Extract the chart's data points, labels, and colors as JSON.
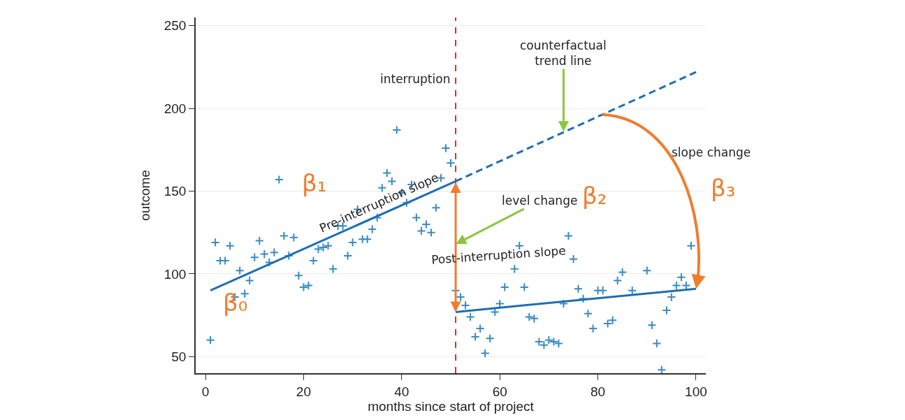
{
  "chart_data": {
    "type": "scatter",
    "xlabel": "months since start of project",
    "ylabel": "outcome",
    "xlim": [
      -2,
      102
    ],
    "ylim": [
      40,
      255
    ],
    "xticks": [
      0,
      20,
      40,
      60,
      80,
      100
    ],
    "yticks": [
      50,
      100,
      150,
      200,
      250
    ],
    "grid": "y",
    "series": [
      {
        "marker": "cross",
        "color": "#3a8ac4",
        "x": [
          1,
          2,
          3,
          4,
          5,
          6,
          7,
          8,
          9,
          10,
          11,
          12,
          13,
          14,
          15,
          16,
          17,
          18,
          19,
          20,
          21,
          22,
          23,
          24,
          25,
          26,
          27,
          28,
          29,
          30,
          31,
          32,
          33,
          34,
          35,
          36,
          37,
          38,
          39,
          40,
          41,
          42,
          43,
          44,
          45,
          46,
          47,
          48,
          49,
          50,
          51,
          52,
          53,
          54,
          55,
          56,
          57,
          58,
          59,
          60,
          61,
          63,
          64,
          65,
          66,
          67,
          68,
          69,
          70,
          71,
          72,
          73,
          74,
          75,
          76,
          77,
          78,
          79,
          80,
          81,
          82,
          83,
          84,
          85,
          87,
          90,
          91,
          92,
          93,
          94,
          95,
          96,
          97,
          98,
          99
        ],
        "values": [
          60,
          119,
          108,
          108,
          117,
          86,
          102,
          88,
          96,
          110,
          120,
          112,
          107,
          113,
          157,
          123,
          111,
          122,
          99,
          92,
          93,
          108,
          115,
          116,
          117,
          103,
          129,
          129,
          111,
          119,
          139,
          121,
          121,
          127,
          134,
          152,
          161,
          156,
          187,
          149,
          143,
          154,
          134,
          126,
          130,
          125,
          140,
          158,
          176,
          167,
          90,
          86,
          81,
          74,
          62,
          67,
          52,
          61,
          77,
          82,
          92,
          103,
          117,
          92,
          74,
          73,
          59,
          57,
          60,
          59,
          58,
          82,
          123,
          109,
          91,
          85,
          76,
          67,
          90,
          90,
          70,
          72,
          96,
          101,
          90,
          102,
          69,
          58,
          42,
          78,
          86,
          93,
          98,
          93,
          117
        ]
      },
      {
        "type": "line",
        "line_style": "solid",
        "color": "#1f6eb0",
        "x": [
          1,
          51
        ],
        "values": [
          90,
          156
        ]
      },
      {
        "type": "line",
        "line_style": "dashed",
        "color": "#1f6eb0",
        "x": [
          51,
          100
        ],
        "values": [
          156,
          222
        ]
      },
      {
        "type": "line",
        "line_style": "solid",
        "color": "#1f6eb0",
        "x": [
          51,
          100
        ],
        "values": [
          77,
          91
        ]
      }
    ],
    "ref_lines": [
      {
        "axis": "x",
        "value": 51,
        "label": "interruption",
        "color": "#e8262a",
        "line_style": "dashed"
      }
    ],
    "annotations": [
      {
        "text": "counterfactual\ntrend line",
        "x": 73,
        "y": 186
      },
      {
        "text": "level change",
        "x": 51,
        "y": 118
      },
      "β₂",
      "slope change",
      "β₃",
      "β₀",
      "β₁",
      "Pre-interruption slope",
      "Post-interruption slope"
    ]
  }
}
